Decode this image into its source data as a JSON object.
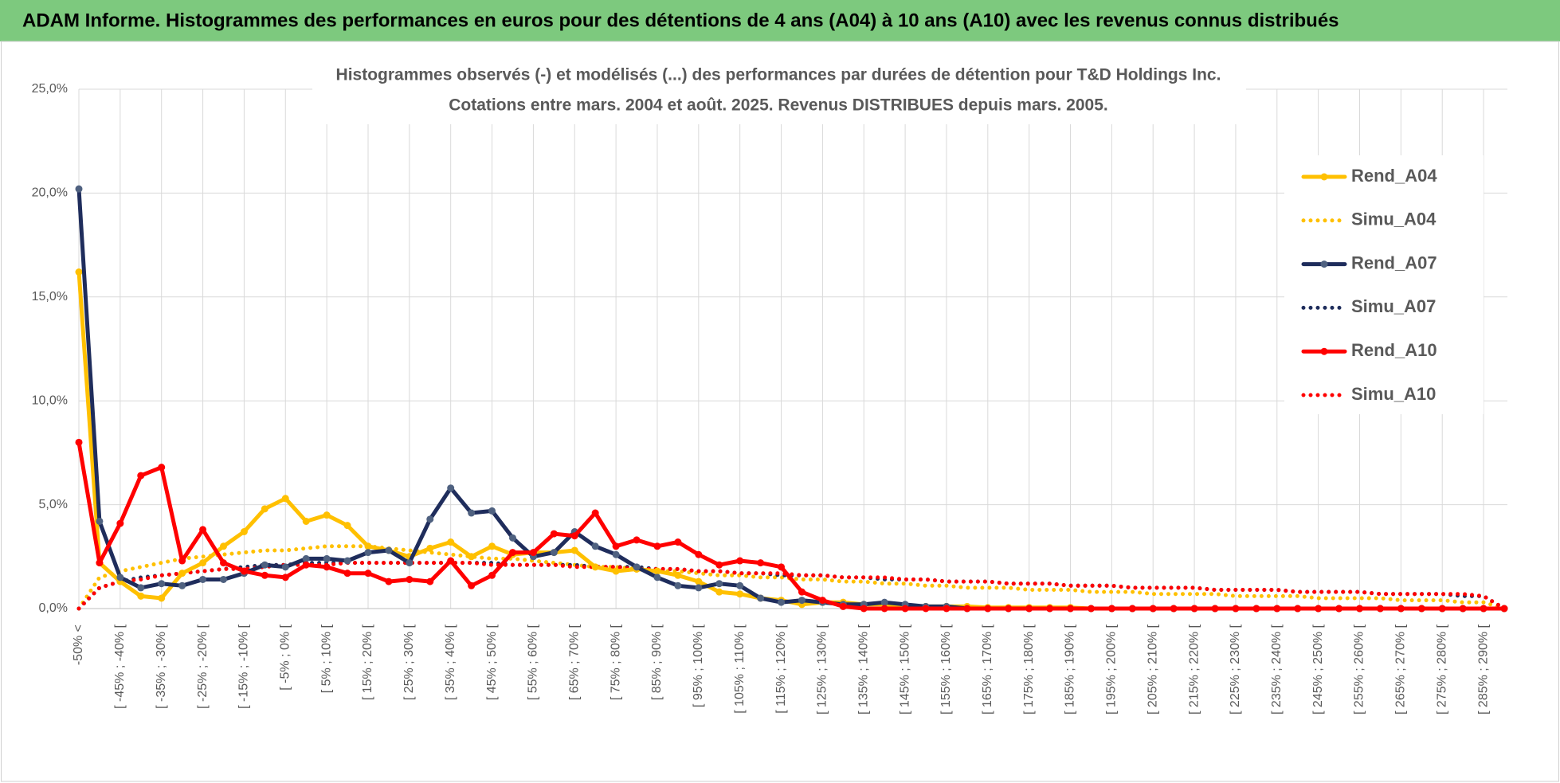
{
  "header": {
    "title": "ADAM Informe. Histogrammes des performances en euros pour des détentions de 4 ans (A04) à 10 ans (A10) avec les revenus connus distribués"
  },
  "chart_data": {
    "type": "line",
    "title": "Histogrammes observés (-) et modélisés (...) des performances par durées de détention pour T&D Holdings Inc.",
    "subtitle": "Cotations entre mars. 2004 et août. 2025. Revenus DISTRIBUES depuis mars. 2005.",
    "categories": [
      "-50% <",
      null,
      "[ -45% ; -40% [",
      null,
      "[ -35% ; -30% [",
      null,
      "[ -25% ; -20% [",
      null,
      "[ -15% ; -10% [",
      null,
      "[ -5% ; 0% [",
      null,
      "[ 5% ; 10% [",
      null,
      "[ 15% ; 20% [",
      null,
      "[ 25% ; 30% [",
      null,
      "[ 35% ; 40% [",
      null,
      "[ 45% ; 50% [",
      null,
      "[ 55% ; 60% [",
      null,
      "[ 65% ; 70% [",
      null,
      "[ 75% ; 80% [",
      null,
      "[ 85% ; 90% [",
      null,
      "[ 95% ; 100% [",
      null,
      "[ 105% ; 110% [",
      null,
      "[ 115% ; 120% [",
      null,
      "[ 125% ; 130% [",
      null,
      "[ 135% ; 140% [",
      null,
      "[ 145% ; 150% [",
      null,
      "[ 155% ; 160% [",
      null,
      "[ 165% ; 170% [",
      null,
      "[ 175% ; 180% [",
      null,
      "[ 185% ; 190% [",
      null,
      "[ 195% ; 200% [",
      null,
      "[ 205% ; 210% [",
      null,
      "[ 215% ; 220% [",
      null,
      "[ 225% ; 230% [",
      null,
      "[ 235% ; 240% [",
      null,
      "[ 245% ; 250% [",
      null,
      "[ 255% ; 260% [",
      null,
      "[ 265% ; 270% [",
      null,
      "[ 275% ; 280% [",
      null,
      "[ 285% ; 290% [",
      null
    ],
    "ylim": [
      0,
      25
    ],
    "yticks": [
      {
        "value": 0,
        "label": "0,0%"
      },
      {
        "value": 5,
        "label": "5,0%"
      },
      {
        "value": 10,
        "label": "10,0%"
      },
      {
        "value": 15,
        "label": "15,0%"
      },
      {
        "value": 20,
        "label": "20,0%"
      },
      {
        "value": 25,
        "label": "25,0%"
      }
    ],
    "grid": true,
    "legend": "right",
    "series": [
      {
        "name": "Rend_A04",
        "color": "#ffc000",
        "style": "solid",
        "marker_color": "#ffc000",
        "values": [
          16.2,
          2.2,
          1.3,
          0.6,
          0.5,
          1.7,
          2.2,
          3.0,
          3.7,
          4.8,
          5.3,
          4.2,
          4.5,
          4.0,
          3.0,
          2.8,
          2.5,
          2.9,
          3.2,
          2.5,
          3.0,
          2.6,
          2.7,
          2.7,
          2.8,
          2.0,
          1.8,
          1.9,
          1.8,
          1.6,
          1.3,
          0.8,
          0.7,
          0.5,
          0.4,
          0.2,
          0.3,
          0.3,
          0.2,
          0.2,
          0.1,
          0.1,
          0.1,
          0.1,
          0.05,
          0.05,
          0.05,
          0.05,
          0.05,
          0,
          0,
          0,
          0,
          0,
          0,
          0,
          0,
          0,
          0,
          0,
          0,
          0,
          0,
          0,
          0,
          0,
          0,
          0,
          0,
          0
        ]
      },
      {
        "name": "Simu_A04",
        "color": "#ffc000",
        "style": "dotted",
        "values": [
          0,
          1.5,
          1.8,
          2.0,
          2.2,
          2.4,
          2.5,
          2.6,
          2.7,
          2.8,
          2.8,
          2.9,
          3.0,
          3.0,
          3.0,
          2.9,
          2.8,
          2.7,
          2.6,
          2.5,
          2.4,
          2.4,
          2.3,
          2.2,
          2.1,
          2.0,
          2.0,
          1.9,
          1.8,
          1.8,
          1.7,
          1.6,
          1.6,
          1.5,
          1.5,
          1.4,
          1.4,
          1.3,
          1.3,
          1.2,
          1.2,
          1.1,
          1.1,
          1.0,
          1.0,
          1.0,
          0.9,
          0.9,
          0.9,
          0.8,
          0.8,
          0.8,
          0.7,
          0.7,
          0.7,
          0.7,
          0.6,
          0.6,
          0.6,
          0.6,
          0.5,
          0.5,
          0.5,
          0.5,
          0.4,
          0.4,
          0.4,
          0.3,
          0.3,
          0
        ]
      },
      {
        "name": "Rend_A07",
        "color": "#1f2d5c",
        "style": "solid",
        "marker_color": "#4f6180",
        "values": [
          20.2,
          4.2,
          1.5,
          1.0,
          1.2,
          1.1,
          1.4,
          1.4,
          1.7,
          2.1,
          2.0,
          2.4,
          2.4,
          2.3,
          2.7,
          2.8,
          2.2,
          4.3,
          5.8,
          4.6,
          4.7,
          3.4,
          2.5,
          2.7,
          3.7,
          3.0,
          2.6,
          2.0,
          1.5,
          1.1,
          1.0,
          1.2,
          1.1,
          0.5,
          0.3,
          0.4,
          0.3,
          0.2,
          0.2,
          0.3,
          0.2,
          0.1,
          0.1,
          0,
          0,
          0,
          0,
          0,
          0,
          0,
          0,
          0,
          0,
          0,
          0,
          0,
          0,
          0,
          0,
          0,
          0,
          0,
          0,
          0,
          0,
          0,
          0,
          0,
          0,
          0
        ]
      },
      {
        "name": "Simu_A07",
        "color": "#1f2d5c",
        "style": "dotted",
        "values": [
          0,
          1.0,
          1.3,
          1.5,
          1.6,
          1.7,
          1.8,
          1.9,
          2.0,
          2.1,
          2.1,
          2.2,
          2.2,
          2.2,
          2.2,
          2.2,
          2.2,
          2.2,
          2.2,
          2.2,
          2.2,
          2.1,
          2.1,
          2.1,
          2.1,
          2.0,
          2.0,
          2.0,
          1.9,
          1.9,
          1.8,
          1.8,
          1.7,
          1.7,
          1.6,
          1.6,
          1.6,
          1.5,
          1.5,
          1.4,
          1.4,
          1.4,
          1.3,
          1.3,
          1.3,
          1.2,
          1.2,
          1.2,
          1.1,
          1.1,
          1.1,
          1.0,
          1.0,
          1.0,
          1.0,
          0.9,
          0.9,
          0.9,
          0.9,
          0.8,
          0.8,
          0.8,
          0.8,
          0.7,
          0.7,
          0.7,
          0.7,
          0.6,
          0.6,
          0
        ]
      },
      {
        "name": "Rend_A10",
        "color": "#ff0000",
        "style": "solid",
        "marker_color": "#ff0000",
        "values": [
          8.0,
          2.2,
          4.1,
          6.4,
          6.8,
          2.3,
          3.8,
          2.2,
          1.8,
          1.6,
          1.5,
          2.1,
          2.0,
          1.7,
          1.7,
          1.3,
          1.4,
          1.3,
          2.3,
          1.1,
          1.6,
          2.7,
          2.7,
          3.6,
          3.5,
          4.6,
          3.0,
          3.3,
          3.0,
          3.2,
          2.6,
          2.1,
          2.3,
          2.2,
          2.0,
          0.8,
          0.4,
          0.1,
          0,
          0,
          0,
          0,
          0,
          0,
          0,
          0,
          0,
          0,
          0,
          0,
          0,
          0,
          0,
          0,
          0,
          0,
          0,
          0,
          0,
          0,
          0,
          0,
          0,
          0,
          0,
          0,
          0,
          0,
          0,
          0
        ]
      },
      {
        "name": "Simu_A10",
        "color": "#ff0000",
        "style": "dotted",
        "values": [
          0,
          1.0,
          1.3,
          1.4,
          1.6,
          1.7,
          1.8,
          1.9,
          1.9,
          2.0,
          2.1,
          2.1,
          2.1,
          2.2,
          2.2,
          2.2,
          2.2,
          2.2,
          2.2,
          2.2,
          2.1,
          2.1,
          2.1,
          2.1,
          2.0,
          2.0,
          2.0,
          1.9,
          1.9,
          1.9,
          1.8,
          1.8,
          1.7,
          1.7,
          1.7,
          1.6,
          1.6,
          1.5,
          1.5,
          1.5,
          1.4,
          1.4,
          1.3,
          1.3,
          1.3,
          1.2,
          1.2,
          1.2,
          1.1,
          1.1,
          1.1,
          1.0,
          1.0,
          1.0,
          1.0,
          0.9,
          0.9,
          0.9,
          0.9,
          0.8,
          0.8,
          0.8,
          0.8,
          0.7,
          0.7,
          0.7,
          0.7,
          0.7,
          0.6,
          0
        ]
      }
    ]
  }
}
